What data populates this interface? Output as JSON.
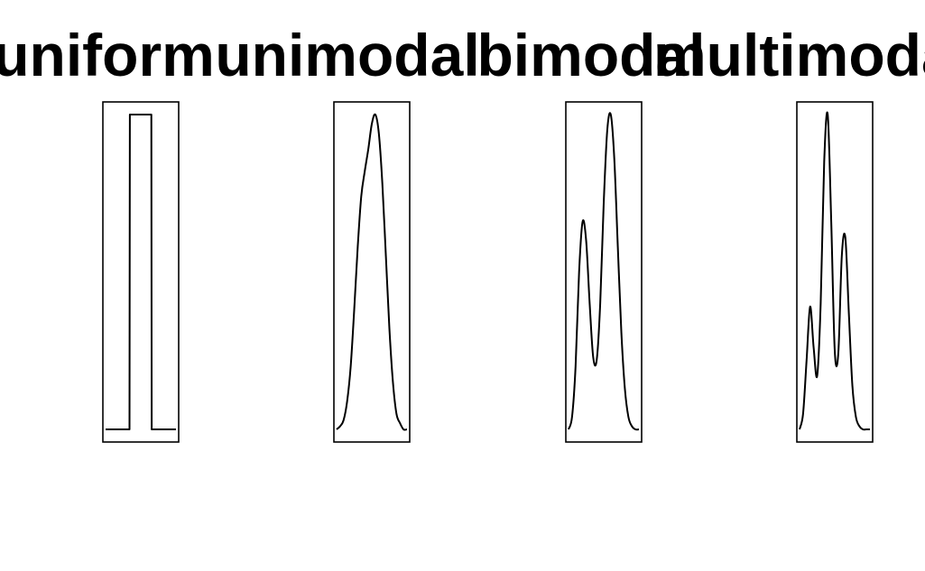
{
  "chart_data": [
    {
      "type": "line",
      "title": "uniform",
      "xlabel": "",
      "ylabel": "",
      "xlim": [
        0,
        1
      ],
      "ylim": [
        0,
        1
      ],
      "x": [
        0.0,
        0.34,
        0.345,
        0.65,
        0.655,
        1.0
      ],
      "series": [
        {
          "values": [
            0.0,
            0.0,
            1.0,
            1.0,
            0.0,
            0.0
          ]
        }
      ]
    },
    {
      "type": "line",
      "title": "unimodal",
      "xlabel": "",
      "ylabel": "",
      "xlim": [
        0,
        1
      ],
      "ylim": [
        0,
        1
      ],
      "x": [
        0.0,
        0.05,
        0.1,
        0.15,
        0.2,
        0.25,
        0.3,
        0.35,
        0.4,
        0.45,
        0.5,
        0.55,
        0.6,
        0.65,
        0.7,
        0.75,
        0.8,
        0.85,
        0.9,
        0.95,
        1.0
      ],
      "series": [
        {
          "values": [
            0.0,
            0.01,
            0.03,
            0.09,
            0.2,
            0.38,
            0.58,
            0.74,
            0.82,
            0.89,
            0.97,
            1.0,
            0.94,
            0.78,
            0.55,
            0.32,
            0.15,
            0.05,
            0.02,
            0.0,
            0.0
          ]
        }
      ]
    },
    {
      "type": "line",
      "title": "bimodal",
      "xlabel": "",
      "ylabel": "",
      "xlim": [
        0,
        1
      ],
      "ylim": [
        0,
        1
      ],
      "x": [
        0.0,
        0.05,
        0.1,
        0.15,
        0.2,
        0.25,
        0.3,
        0.35,
        0.4,
        0.45,
        0.5,
        0.55,
        0.6,
        0.65,
        0.7,
        0.75,
        0.8,
        0.85,
        0.9,
        0.95,
        1.0
      ],
      "series": [
        {
          "values": [
            0.0,
            0.04,
            0.2,
            0.5,
            0.66,
            0.6,
            0.4,
            0.23,
            0.22,
            0.4,
            0.72,
            0.95,
            1.0,
            0.86,
            0.58,
            0.31,
            0.13,
            0.04,
            0.01,
            0.0,
            0.0
          ]
        }
      ]
    },
    {
      "type": "line",
      "title": "multimodal",
      "xlabel": "",
      "ylabel": "",
      "xlim": [
        0,
        1
      ],
      "ylim": [
        0,
        1
      ],
      "x": [
        0.0,
        0.05,
        0.1,
        0.15,
        0.2,
        0.25,
        0.3,
        0.35,
        0.4,
        0.45,
        0.5,
        0.55,
        0.6,
        0.65,
        0.7,
        0.75,
        0.8,
        0.85,
        0.9,
        0.95,
        1.0
      ],
      "series": [
        {
          "values": [
            0.0,
            0.05,
            0.22,
            0.39,
            0.26,
            0.17,
            0.4,
            0.85,
            1.0,
            0.66,
            0.25,
            0.24,
            0.55,
            0.61,
            0.37,
            0.14,
            0.04,
            0.01,
            0.0,
            0.0,
            0.0
          ]
        }
      ]
    }
  ]
}
